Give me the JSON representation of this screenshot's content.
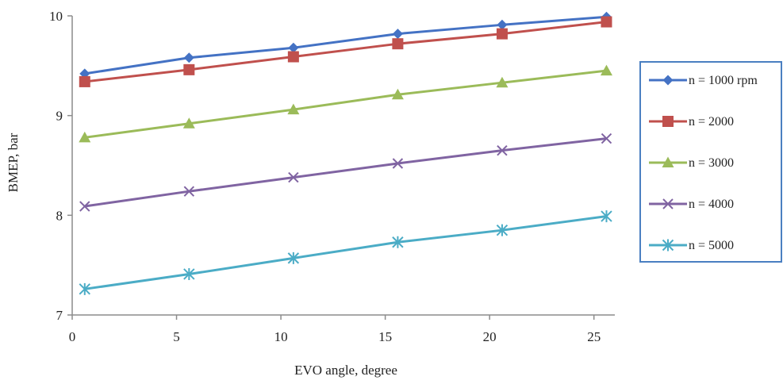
{
  "chart_data": {
    "type": "line",
    "title": "",
    "xlabel": "EVO angle, degree",
    "ylabel": "BMEP, bar",
    "xlim": [
      0,
      26
    ],
    "ylim": [
      7,
      10
    ],
    "xticks": [
      0,
      5,
      10,
      15,
      20,
      25
    ],
    "yticks": [
      7,
      8,
      9,
      10
    ],
    "grid": false,
    "legend_position": "right",
    "x": [
      0.6,
      5.6,
      10.6,
      15.6,
      20.6,
      25.6
    ],
    "series": [
      {
        "name": "n = 1000 rpm",
        "color": "#4472C4",
        "marker": "diamond",
        "values": [
          9.42,
          9.58,
          9.68,
          9.82,
          9.91,
          9.99
        ]
      },
      {
        "name": "n = 2000",
        "color": "#C0504D",
        "marker": "square",
        "values": [
          9.34,
          9.46,
          9.59,
          9.72,
          9.82,
          9.94
        ]
      },
      {
        "name": "n = 3000",
        "color": "#9BBB59",
        "marker": "triangle",
        "values": [
          8.78,
          8.92,
          9.06,
          9.21,
          9.33,
          9.45
        ]
      },
      {
        "name": "n = 4000",
        "color": "#8064A2",
        "marker": "x",
        "values": [
          8.09,
          8.24,
          8.38,
          8.52,
          8.65,
          8.77
        ]
      },
      {
        "name": "n = 5000",
        "color": "#4BACC6",
        "marker": "star",
        "values": [
          7.26,
          7.41,
          7.57,
          7.73,
          7.85,
          7.99
        ]
      }
    ]
  }
}
